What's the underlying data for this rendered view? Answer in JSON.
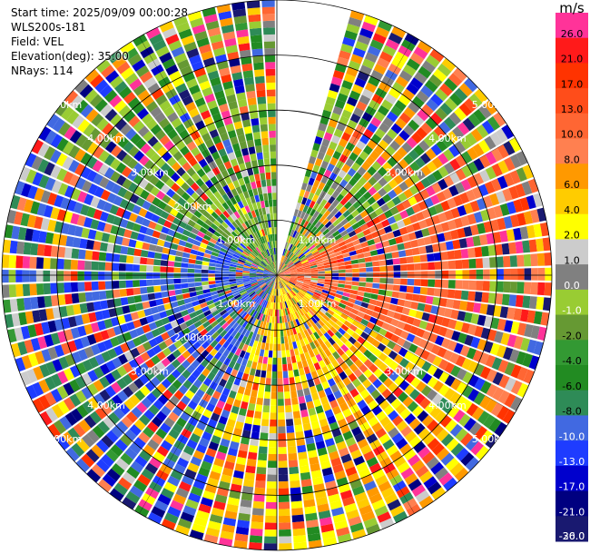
{
  "header": {
    "start_time": "Start time: 2025/09/09 00:00:28",
    "instrument": "WLS200s-181",
    "field": "Field: VEL",
    "elevation": "Elevation(deg): 35.00",
    "nrays": "NRays: 114"
  },
  "chart_data": {
    "type": "heatmap",
    "subtype": "polar-ppi",
    "field": "VEL",
    "units": "m/s",
    "elevation_deg": 35.0,
    "n_rays": 114,
    "range_rings_km": [
      1.0,
      2.0,
      3.0,
      4.0,
      5.0
    ],
    "max_range_km": 5.0,
    "missing_sector_deg": [
      0,
      15
    ],
    "ring_labels": [
      {
        "text": "1.00km",
        "quadrant": "NW"
      },
      {
        "text": "2.00km",
        "quadrant": "NW"
      },
      {
        "text": "3.00km",
        "quadrant": "NW"
      },
      {
        "text": "4.00km",
        "quadrant": "NW"
      },
      {
        "text": "5.00km",
        "quadrant": "NW"
      },
      {
        "text": "1.00km",
        "quadrant": "NE"
      },
      {
        "text": "3.00km",
        "quadrant": "NE"
      },
      {
        "text": "4.00km",
        "quadrant": "NE"
      },
      {
        "text": "5.00km",
        "quadrant": "NE"
      },
      {
        "text": "1.00km",
        "quadrant": "SE"
      },
      {
        "text": "3.00km",
        "quadrant": "SE"
      },
      {
        "text": "4.00km",
        "quadrant": "SE"
      },
      {
        "text": "5.00km",
        "quadrant": "SE"
      },
      {
        "text": "1.00km",
        "quadrant": "SW"
      },
      {
        "text": "2.00km",
        "quadrant": "SW"
      },
      {
        "text": "3.00km",
        "quadrant": "SW"
      },
      {
        "text": "4.00km",
        "quadrant": "SW"
      },
      {
        "text": "5.00km",
        "quadrant": "SW"
      }
    ],
    "colorbar": {
      "title": "m/s",
      "ticks": [
        "26.0",
        "21.0",
        "17.0",
        "13.0",
        "10.0",
        "8.0",
        "6.0",
        "4.0",
        "2.0",
        "1.0",
        "0.0",
        "-1.0",
        "-2.0",
        "-4.0",
        "-6.0",
        "-8.0",
        "-10.0",
        "-13.0",
        "-17.0",
        "-21.0",
        "-26.0",
        "-30.0"
      ],
      "colors": [
        "#ff3399",
        "#ff1a1a",
        "#ff3300",
        "#ff4d1a",
        "#ff6633",
        "#ff8050",
        "#ff9900",
        "#ffcc00",
        "#ffff00",
        "#cccccc",
        "#808080",
        "#99cc33",
        "#669933",
        "#339933",
        "#228b22",
        "#2e8b57",
        "#4169e1",
        "#1e3cff",
        "#0000cd",
        "#000080",
        "#191970"
      ]
    },
    "sectors": [
      {
        "from_deg": 15,
        "to_deg": 60,
        "dominant": [
          "#228b22",
          "#99cc33",
          "#ff9900",
          "#808080"
        ]
      },
      {
        "from_deg": 60,
        "to_deg": 120,
        "dominant": [
          "#ff6633",
          "#ff8050",
          "#ff4d1a"
        ]
      },
      {
        "from_deg": 120,
        "to_deg": 200,
        "dominant": [
          "#ffff00",
          "#ffcc00",
          "#ff9900"
        ]
      },
      {
        "from_deg": 200,
        "to_deg": 300,
        "dominant": [
          "#4169e1",
          "#2e8b57",
          "#1e3cff"
        ]
      },
      {
        "from_deg": 300,
        "to_deg": 360,
        "dominant": [
          "#228b22",
          "#669933",
          "#99cc33"
        ]
      }
    ]
  }
}
